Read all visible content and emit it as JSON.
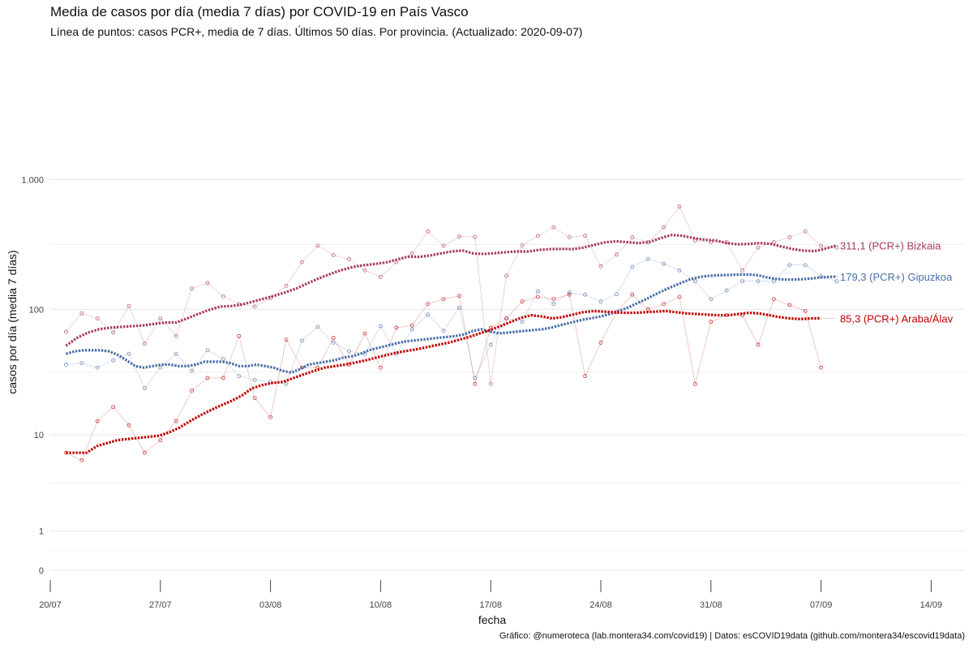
{
  "chart_data": {
    "type": "line",
    "title": "Media de casos por día (media 7 días) por COVID-19 en País Vasco",
    "subtitle": "Línea de puntos: casos PCR+, media de 7 días. Últimos 50 días. Por provincia. (Actualizado: 2020-09-07)",
    "xlabel": "fecha",
    "ylabel": "casos por día (media 7 días)",
    "caption": "Gráfico: @numeroteca (lab.montera34.com/covid19) | Datos: esCOVID19data (github.com/montera34/escovid19data)",
    "y_scale": "log10(x+1)",
    "grid": true,
    "x_ticks": [
      {
        "date": "2020-07-20",
        "label": "20/07"
      },
      {
        "date": "2020-07-27",
        "label": "27/07"
      },
      {
        "date": "2020-08-03",
        "label": "03/08"
      },
      {
        "date": "2020-08-10",
        "label": "10/08"
      },
      {
        "date": "2020-08-17",
        "label": "17/08"
      },
      {
        "date": "2020-08-24",
        "label": "24/08"
      },
      {
        "date": "2020-08-31",
        "label": "31/08"
      },
      {
        "date": "2020-09-07",
        "label": "07/09"
      },
      {
        "date": "2020-09-14",
        "label": "14/09"
      }
    ],
    "y_ticks": [
      {
        "value": 0,
        "label": "0"
      },
      {
        "value": 1,
        "label": "1"
      },
      {
        "value": 10,
        "label": "10"
      },
      {
        "value": 100,
        "label": "100"
      },
      {
        "value": 1000,
        "label": "1.000"
      }
    ],
    "x_start": "2020-07-21",
    "series": [
      {
        "name": "Bizkaia",
        "end_label": "311,1 (PCR+) Bizkaia",
        "color": "#a83d58",
        "daily": [
          67,
          93,
          85,
          66,
          106,
          54,
          85,
          62,
          145,
          160,
          126,
          110,
          105,
          122,
          152,
          232,
          310,
          262,
          245,
          200,
          178,
          232,
          270,
          400,
          310,
          365,
          362,
          26,
          182,
          312,
          370,
          430,
          360,
          370,
          215,
          265,
          360,
          330,
          430,
          620,
          340,
          330,
          330,
          200,
          300,
          330,
          360,
          400,
          310,
          300
        ],
        "avg": [
          52,
          60,
          66,
          70,
          72,
          73,
          74,
          75,
          77,
          79,
          79,
          85,
          92,
          99,
          105,
          106,
          109,
          115,
          121,
          128,
          136,
          146,
          160,
          174,
          188,
          201,
          212,
          219,
          224,
          230,
          242,
          255,
          254,
          260,
          270,
          280,
          285,
          270,
          268,
          272,
          277,
          280,
          280,
          288,
          292,
          293,
          292,
          300,
          315,
          330,
          335,
          330,
          325,
          331,
          355,
          375,
          370,
          355,
          345,
          340,
          325,
          318,
          320,
          325,
          320,
          305,
          292,
          284,
          282,
          295,
          311.1
        ]
      },
      {
        "name": "Gipuzkoa",
        "end_label": "179,3 (PCR+) Gipuzkoa",
        "color": "#4a6fa5",
        "daily": [
          37,
          38,
          35,
          40,
          45,
          24,
          35,
          45,
          33,
          48,
          41,
          30,
          28,
          27,
          26,
          57,
          73,
          55,
          47,
          45,
          74,
          45,
          70,
          91,
          68,
          103,
          29,
          53,
          85,
          80,
          138,
          110,
          135,
          130,
          115,
          131,
          213,
          245,
          225,
          200,
          165,
          120,
          140,
          165,
          165,
          165,
          220,
          220,
          180,
          165
        ],
        "avg": [
          45,
          47,
          48,
          48,
          48,
          47,
          44,
          40,
          36,
          35,
          36,
          37,
          37,
          36,
          36,
          37,
          39,
          39,
          39,
          38,
          36,
          36,
          37,
          36,
          35,
          33,
          32,
          34,
          37,
          38,
          39,
          40,
          42,
          43,
          45,
          48,
          50,
          52,
          54,
          56,
          57,
          58,
          59,
          60,
          61,
          62,
          64,
          68,
          70,
          67,
          65,
          66,
          67,
          68,
          69,
          70,
          72,
          75,
          78,
          81,
          84,
          86,
          89,
          93,
          98,
          104,
          112,
          120,
          130,
          140,
          150,
          160,
          170,
          177,
          181,
          183,
          184,
          185,
          186,
          186,
          183,
          176,
          172,
          170,
          170,
          171,
          173,
          176,
          178,
          179.3
        ]
      },
      {
        "name": "Araba/Álava",
        "end_label": "85,3 (PCR+) Araba/Álav",
        "color": "#c00000",
        "daily": [
          7,
          6,
          13,
          17,
          12,
          7,
          9,
          13,
          23,
          29,
          29,
          62,
          20,
          14,
          58,
          35,
          35,
          60,
          37,
          65,
          35,
          72,
          75,
          110,
          120,
          127,
          26,
          72,
          85,
          115,
          125,
          120,
          130,
          30,
          55,
          95,
          130,
          100,
          110,
          125,
          26,
          80,
          90,
          90,
          53,
          120,
          108,
          97,
          35
        ],
        "avg": [
          7,
          7,
          7,
          8,
          8.5,
          9,
          9.2,
          9.4,
          9.6,
          9.8,
          10.5,
          11.5,
          13,
          14.5,
          16,
          17.5,
          19,
          21,
          24,
          25.5,
          26.5,
          27,
          29,
          31,
          33,
          35,
          36,
          37,
          38.5,
          40,
          42,
          44,
          46,
          47.5,
          49,
          51,
          53,
          55,
          58,
          61,
          65,
          69,
          74,
          80,
          86,
          90,
          88,
          85,
          87,
          91,
          95,
          97,
          96,
          95,
          94,
          94,
          95,
          96,
          97,
          95,
          93,
          92,
          91,
          90,
          90,
          92,
          94,
          93,
          90,
          87,
          85,
          84,
          85,
          85.3
        ]
      }
    ]
  }
}
